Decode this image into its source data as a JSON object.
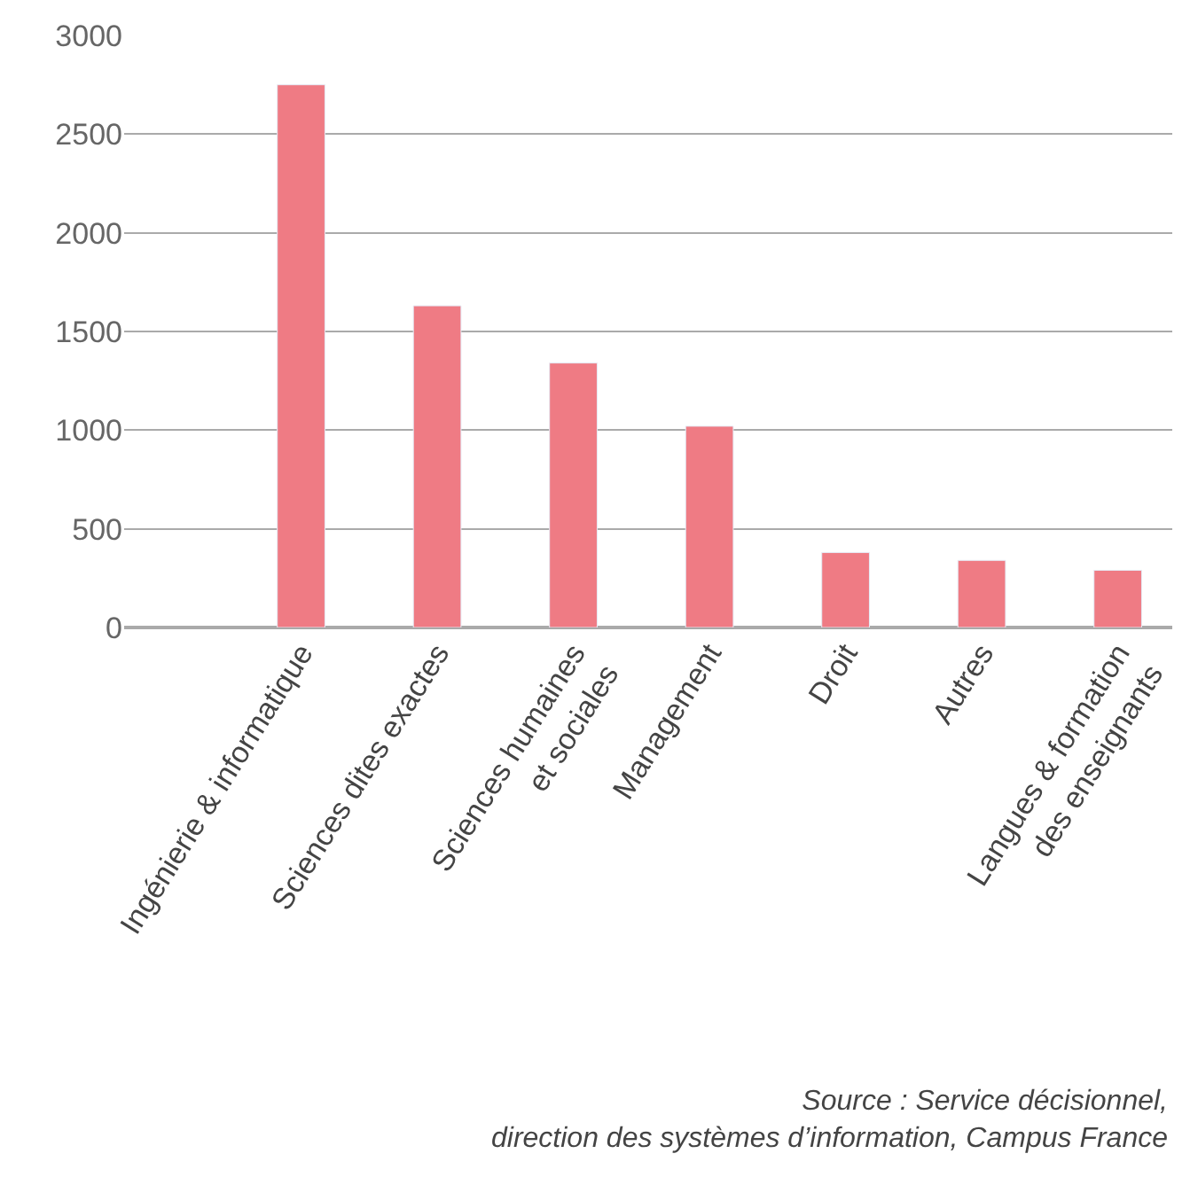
{
  "chart_data": {
    "type": "bar",
    "categories": [
      "Ingénierie & informatique",
      "Sciences dites exactes",
      "Sciences humaines\net sociales",
      "Management",
      "Droit",
      "Autres",
      "Langues & formation\ndes enseignants"
    ],
    "values": [
      2750,
      1630,
      1340,
      1020,
      380,
      340,
      290
    ],
    "color": "#ef7b84",
    "ylim": [
      0,
      3000
    ],
    "yticks": [
      0,
      500,
      1000,
      1500,
      2000,
      2500,
      3000
    ],
    "grid": "y",
    "annotations": [
      "Source : Service décisionnel,\ndirection des systèmes d’information, Campus France"
    ]
  }
}
